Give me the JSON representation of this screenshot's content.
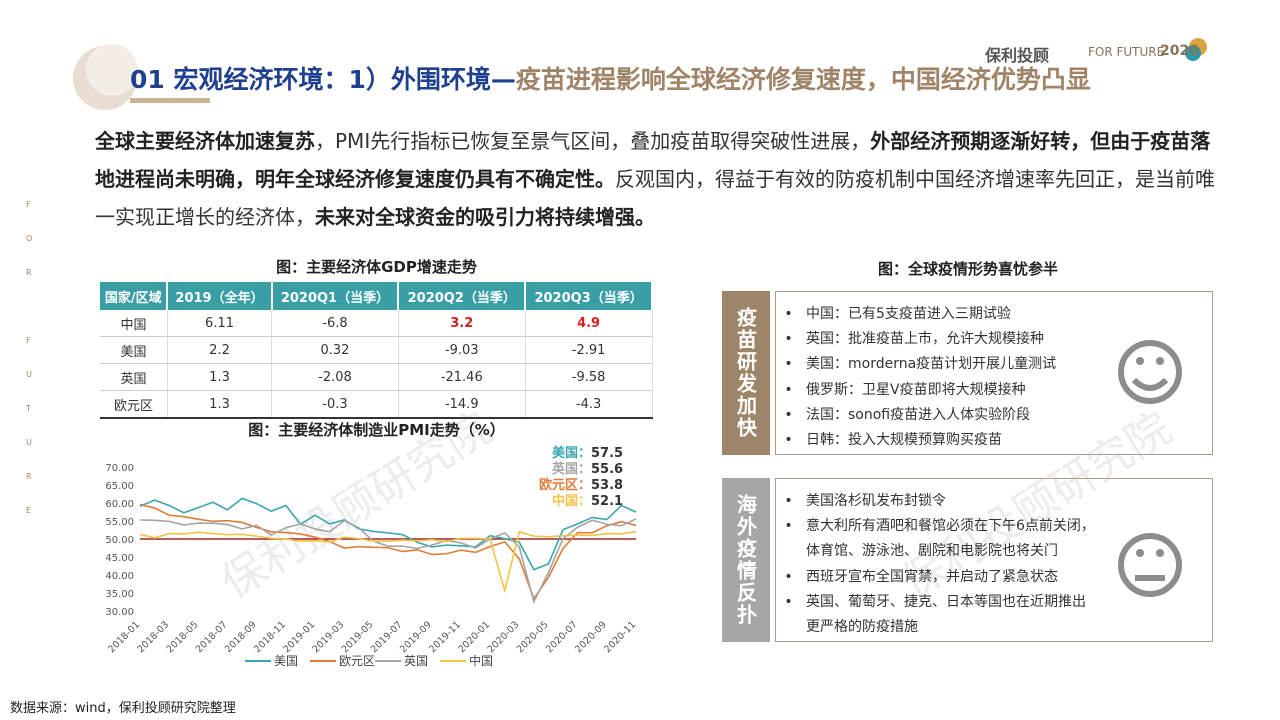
{
  "header": {
    "title_main": "01 宏观经济环境：1）外围环境—",
    "title_sub": "疫苗进程影响全球经济修复速度，中国经济优势凸显",
    "logo": "保利投顾",
    "logo_slogan": "FOR FUTURE",
    "logo_year": "2020"
  },
  "side_text": [
    "F",
    "O",
    "R",
    "F",
    "U",
    "T",
    "U",
    "R",
    "E"
  ],
  "watermark": "保利投顾研究院",
  "intro": [
    {
      "text": "全球主要经济体加速复苏",
      "bold": true
    },
    {
      "text": "，PMI先行指标已恢复至景气区间，叠加疫苗取得突破性进展，",
      "bold": false
    },
    {
      "text": "外部经济预期逐渐好转，但由于疫苗落地进程尚未明确，明年全球经济修复速度仍具有不确定性。",
      "bold": true
    },
    {
      "text": "反观国内，得益于有效的防疫机制中国经济增速率先回正，是当前唯一实现正增长的经济体，",
      "bold": false
    },
    {
      "text": "未来对全球资金的吸引力将持续增强。",
      "bold": true
    }
  ],
  "table": {
    "title": "图：主要经济体GDP增速走势",
    "headers": [
      "国家/区域",
      "2019（全年）",
      "2020Q1（当季）",
      "2020Q2（当季）",
      "2020Q3（当季）"
    ],
    "rows": [
      [
        "中国",
        "6.11",
        "-6.8",
        "3.2",
        "4.9"
      ],
      [
        "美国",
        "2.2",
        "0.32",
        "-9.03",
        "-2.91"
      ],
      [
        "英国",
        "1.3",
        "-2.08",
        "-21.46",
        "-9.58"
      ],
      [
        "欧元区",
        "1.3",
        "-0.3",
        "-14.9",
        "-4.3"
      ]
    ]
  },
  "chart_data": {
    "type": "line",
    "title": "图：主要经济体制造业PMI走势（%）",
    "categories": [
      "2018-01",
      null,
      "2018-03",
      null,
      "2018-05",
      null,
      "2018-07",
      null,
      "2018-09",
      null,
      "2018-11",
      null,
      "2019-01",
      null,
      "2019-03",
      null,
      "2019-05",
      null,
      "2019-07",
      null,
      "2019-09",
      null,
      "2019-11",
      null,
      "2020-01",
      null,
      "2020-03",
      null,
      "2020-05",
      null,
      "2020-07",
      null,
      "2020-09",
      null,
      "2020-11"
    ],
    "series": [
      {
        "name": "美国",
        "color": "#3aa6b0",
        "values": [
          59.1,
          60.8,
          59.3,
          57.3,
          58.7,
          60.2,
          58.1,
          61.3,
          59.8,
          57.7,
          59.3,
          54.1,
          56.6,
          54.2,
          55.3,
          52.8,
          52.1,
          51.7,
          51.2,
          49.1,
          47.8,
          48.3,
          48.1,
          47.8,
          50.9,
          50.1,
          49.1,
          41.5,
          43.1,
          52.6,
          54.2,
          56.0,
          55.4,
          59.3,
          57.5
        ]
      },
      {
        "name": "欧元区",
        "color": "#e07b39",
        "values": [
          59.6,
          58.6,
          56.6,
          56.2,
          55.5,
          54.9,
          55.1,
          54.6,
          53.2,
          52.0,
          51.8,
          51.4,
          50.5,
          49.3,
          47.5,
          47.9,
          47.7,
          47.6,
          46.5,
          47.0,
          45.7,
          45.9,
          46.9,
          46.3,
          47.9,
          49.2,
          44.5,
          33.4,
          39.4,
          47.4,
          51.8,
          51.7,
          53.7,
          54.8,
          53.8
        ]
      },
      {
        "name": "英国",
        "color": "#a5a5a5",
        "values": [
          55.3,
          55.2,
          54.9,
          53.9,
          54.4,
          54.4,
          54.0,
          52.8,
          53.8,
          51.1,
          53.1,
          54.2,
          52.8,
          52.0,
          55.1,
          53.1,
          49.4,
          48.0,
          48.0,
          47.4,
          48.3,
          49.6,
          48.9,
          47.5,
          50.0,
          51.7,
          47.8,
          32.6,
          40.7,
          50.1,
          53.3,
          55.2,
          54.1,
          53.7,
          55.6
        ]
      },
      {
        "name": "中国",
        "color": "#f5c242",
        "values": [
          51.3,
          50.3,
          51.5,
          51.4,
          51.9,
          51.5,
          51.2,
          51.3,
          50.8,
          50.2,
          50.0,
          49.4,
          49.5,
          49.2,
          50.5,
          50.1,
          49.4,
          49.4,
          49.7,
          49.5,
          49.8,
          49.3,
          50.2,
          50.2,
          50.0,
          35.7,
          52.0,
          50.8,
          50.6,
          50.9,
          51.1,
          51.0,
          51.5,
          51.4,
          52.1
        ]
      }
    ],
    "ylim": [
      30,
      70
    ],
    "yticks": [
      {
        "value": 30,
        "label": "30.00"
      },
      {
        "value": 35,
        "label": "35.00"
      },
      {
        "value": 40,
        "label": "40.00"
      },
      {
        "value": 45,
        "label": "45.00"
      },
      {
        "value": 50,
        "label": "50.00"
      },
      {
        "value": 55,
        "label": "55.00"
      },
      {
        "value": 60,
        "label": "60.00"
      },
      {
        "value": 65,
        "label": "65.00"
      },
      {
        "value": 70,
        "label": "70.00"
      }
    ],
    "threshold": 50,
    "threshold_color": "#a0282c",
    "legend": "bottom",
    "annotations": [
      {
        "text": "美国：",
        "value": 57.5,
        "color": "#3aa6b0"
      },
      {
        "text": "英国：",
        "value": 55.6,
        "color": "#a5a5a5"
      },
      {
        "text": "欧元区：",
        "value": 53.8,
        "color": "#e07b39"
      },
      {
        "text": "中国：",
        "value": 52.1,
        "color": "#f5c242"
      }
    ]
  },
  "panel": {
    "title": "图：全球疫情形势喜忧参半",
    "boxes": [
      {
        "label": "疫苗研发加快",
        "items": [
          "中国：已有5支疫苗进入三期试验",
          "英国：批准疫苗上市，允许大规模接种",
          "美国：morderna疫苗计划开展儿童测试",
          "俄罗斯：卫星V疫苗即将大规模接种",
          "法国：sonofi疫苗进入人体实验阶段",
          "日韩：投入大规模预算购买疫苗"
        ]
      },
      {
        "label": "海外疫情反扑",
        "items": [
          "美国洛杉矶发布封锁令",
          [
            "意大利所有酒吧和餐馆必须在下午6点前关闭，",
            "体育馆、游泳池、剧院和电影院也将关门"
          ],
          "西班牙宣布全国宵禁，并启动了紧急状态",
          [
            "英国、葡萄牙、捷克、日本等国也在近期推出",
            "更严格的防疫措施"
          ]
        ]
      }
    ]
  },
  "source": "数据来源：wind，保利投顾研究院整理"
}
